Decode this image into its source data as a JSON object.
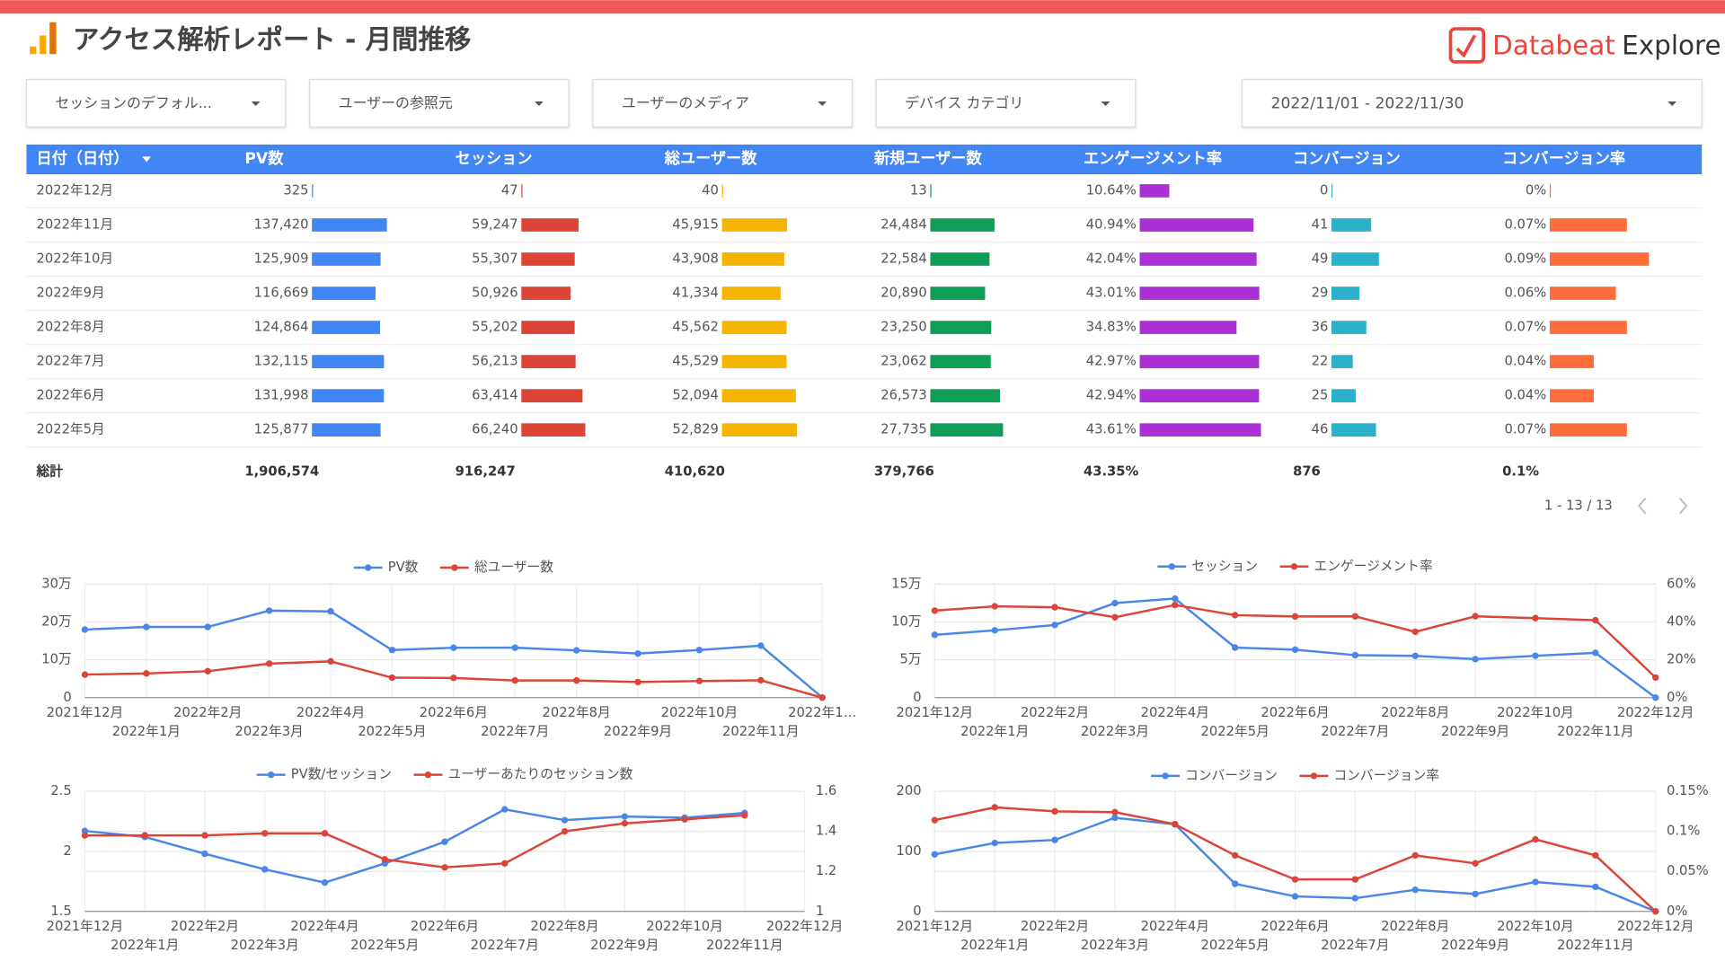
{
  "header": {
    "title": "アクセス解析レポート - 月間推移",
    "brand": {
      "name": "Databeat",
      "product": "Explore"
    }
  },
  "filters": [
    "セッションのデフォル...",
    "ユーザーの参照元",
    "ユーザーのメディア",
    "デバイス カテゴリ",
    "2022/11/01 - 2022/11/30"
  ],
  "table": {
    "date_header": "日付（日付）",
    "categories": [
      "2022年12月",
      "2022年11月",
      "2022年10月",
      "2022年9月",
      "2022年8月",
      "2022年7月",
      "2022年6月",
      "2022年5月"
    ],
    "columns": [
      {
        "name": "PV数",
        "color": "#4285f4",
        "values": [
          325,
          137420,
          125909,
          116669,
          124864,
          132115,
          131998,
          125877
        ],
        "value_labels": [
          "325",
          "137,420",
          "125,909",
          "116,669",
          "124,864",
          "132,115",
          "131,998",
          "125,877"
        ],
        "total": "1,906,574"
      },
      {
        "name": "セッション",
        "color": "#db4437",
        "values": [
          47,
          59247,
          55307,
          50926,
          55202,
          56213,
          63414,
          66240
        ],
        "value_labels": [
          "47",
          "59,247",
          "55,307",
          "50,926",
          "55,202",
          "56,213",
          "63,414",
          "66,240"
        ],
        "total": "916,247"
      },
      {
        "name": "総ユーザー数",
        "color": "#f4b400",
        "values": [
          40,
          45915,
          43908,
          41334,
          45562,
          45529,
          52094,
          52829
        ],
        "value_labels": [
          "40",
          "45,915",
          "43,908",
          "41,334",
          "45,562",
          "45,529",
          "52,094",
          "52,829"
        ],
        "total": "410,620"
      },
      {
        "name": "新規ユーザー数",
        "color": "#0f9d58",
        "values": [
          13,
          24484,
          22584,
          20890,
          23250,
          23062,
          26573,
          27735
        ],
        "value_labels": [
          "13",
          "24,484",
          "22,584",
          "20,890",
          "23,250",
          "23,062",
          "26,573",
          "27,735"
        ],
        "total": "379,766"
      },
      {
        "name": "エンゲージメント率",
        "color": "#ab30d6",
        "values": [
          10.64,
          40.94,
          42.04,
          43.01,
          34.83,
          42.97,
          42.94,
          43.61
        ],
        "value_labels": [
          "10.64%",
          "40.94%",
          "42.04%",
          "43.01%",
          "34.83%",
          "42.97%",
          "42.94%",
          "43.61%"
        ],
        "total": "43.35%"
      },
      {
        "name": "コンバージョン",
        "color": "#2bb1c9",
        "values": [
          0,
          41,
          49,
          29,
          36,
          22,
          25,
          46
        ],
        "value_labels": [
          "0",
          "41",
          "49",
          "29",
          "36",
          "22",
          "25",
          "46"
        ],
        "total": "876"
      },
      {
        "name": "コンバージョン率",
        "color": "#ff6d3a",
        "values": [
          0,
          0.07,
          0.09,
          0.06,
          0.07,
          0.04,
          0.04,
          0.07
        ],
        "value_labels": [
          "0%",
          "0.07%",
          "0.09%",
          "0.06%",
          "0.07%",
          "0.04%",
          "0.04%",
          "0.07%"
        ],
        "total": "0.1%"
      }
    ],
    "total_label": "総計",
    "pagination": "1 - 13 / 13"
  },
  "chart_data": [
    {
      "type": "line",
      "grid": true,
      "categories": [
        "2021年12月",
        "2022年1月",
        "2022年2月",
        "2022年3月",
        "2022年4月",
        "2022年5月",
        "2022年6月",
        "2022年7月",
        "2022年8月",
        "2022年9月",
        "2022年10月",
        "2022年11月",
        "2022年1…"
      ],
      "series": [
        {
          "name": "PV数",
          "color": "#4a86e8",
          "values": [
            180000,
            187000,
            187000,
            230000,
            228000,
            125877,
            131998,
            132115,
            124864,
            116669,
            125909,
            137420,
            325
          ]
        },
        {
          "name": "総ユーザー数",
          "color": "#db4437",
          "values": [
            61000,
            64000,
            70000,
            90000,
            96000,
            52829,
            52094,
            45529,
            45562,
            41334,
            43908,
            45915,
            40
          ]
        }
      ],
      "ylim": [
        0,
        300000
      ],
      "yticks": [
        0,
        {
          "value": 100000,
          "label": "10万"
        },
        {
          "value": 200000,
          "label": "20万"
        },
        {
          "value": 300000,
          "label": "30万"
        }
      ]
    },
    {
      "type": "line",
      "grid": true,
      "categories": [
        "2021年12月",
        "2022年1月",
        "2022年2月",
        "2022年3月",
        "2022年4月",
        "2022年5月",
        "2022年6月",
        "2022年7月",
        "2022年8月",
        "2022年9月",
        "2022年10月",
        "2022年11月",
        "2022年12月"
      ],
      "series": [
        {
          "name": "セッション",
          "color": "#4a86e8",
          "values": [
            83000,
            89000,
            96000,
            125000,
            131000,
            66240,
            63414,
            56213,
            55202,
            50926,
            55307,
            59247,
            47
          ]
        },
        {
          "name": "エンゲージメント率",
          "color": "#db4437",
          "axis": "y2",
          "values": [
            46,
            48.3,
            47.8,
            42.5,
            49,
            43.61,
            42.94,
            42.97,
            34.83,
            43.01,
            42.04,
            40.94,
            10.64
          ]
        }
      ],
      "ylim": [
        0,
        150000
      ],
      "yticks": [
        0,
        {
          "value": 50000,
          "label": "5万"
        },
        {
          "value": 100000,
          "label": "10万"
        },
        {
          "value": 150000,
          "label": "15万"
        }
      ],
      "y2lim": [
        0,
        60
      ],
      "y2ticks": [
        {
          "value": 0,
          "label": "0%"
        },
        {
          "value": 20,
          "label": "20%"
        },
        {
          "value": 40,
          "label": "40%"
        },
        {
          "value": 60,
          "label": "60%"
        }
      ]
    },
    {
      "type": "line",
      "grid": true,
      "categories": [
        "2021年12月",
        "2022年1月",
        "2022年2月",
        "2022年3月",
        "2022年4月",
        "2022年5月",
        "2022年6月",
        "2022年7月",
        "2022年8月",
        "2022年9月",
        "2022年10月",
        "2022年11月",
        "2022年12月"
      ],
      "series": [
        {
          "name": "PV数/セッション",
          "color": "#4a86e8",
          "values": [
            2.17,
            2.12,
            1.98,
            1.85,
            1.74,
            1.9,
            2.08,
            2.35,
            2.26,
            2.29,
            2.28,
            2.32,
            null
          ]
        },
        {
          "name": "ユーザーあたりのセッション数",
          "color": "#db4437",
          "axis": "y2",
          "values": [
            1.38,
            1.38,
            1.38,
            1.39,
            1.39,
            1.26,
            1.22,
            1.24,
            1.4,
            1.44,
            1.46,
            1.48,
            null
          ]
        }
      ],
      "ylim": [
        1.5,
        2.5
      ],
      "yticks": [
        1.5,
        2,
        2.5
      ],
      "y2lim": [
        1,
        1.6
      ],
      "y2ticks": [
        1,
        1.2,
        1.4,
        1.6
      ]
    },
    {
      "type": "line",
      "grid": true,
      "categories": [
        "2021年12月",
        "2022年1月",
        "2022年2月",
        "2022年3月",
        "2022年4月",
        "2022年5月",
        "2022年6月",
        "2022年7月",
        "2022年8月",
        "2022年9月",
        "2022年10月",
        "2022年11月",
        "2022年12月"
      ],
      "series": [
        {
          "name": "コンバージョン",
          "color": "#4a86e8",
          "values": [
            95,
            114,
            119,
            156,
            145,
            46,
            25,
            22,
            36,
            29,
            49,
            41,
            0
          ]
        },
        {
          "name": "コンバージョン率",
          "color": "#db4437",
          "axis": "y2",
          "values": [
            0.114,
            0.13,
            0.125,
            0.124,
            0.109,
            0.07,
            0.04,
            0.04,
            0.07,
            0.06,
            0.09,
            0.07,
            0
          ]
        }
      ],
      "ylim": [
        0,
        200
      ],
      "yticks": [
        0,
        100,
        200
      ],
      "y2lim": [
        0,
        0.15
      ],
      "y2ticks": [
        {
          "value": 0,
          "label": "0%"
        },
        {
          "value": 0.05,
          "label": "0.05%"
        },
        {
          "value": 0.1,
          "label": "0.1%"
        },
        {
          "value": 0.15,
          "label": "0.15%"
        }
      ]
    }
  ]
}
